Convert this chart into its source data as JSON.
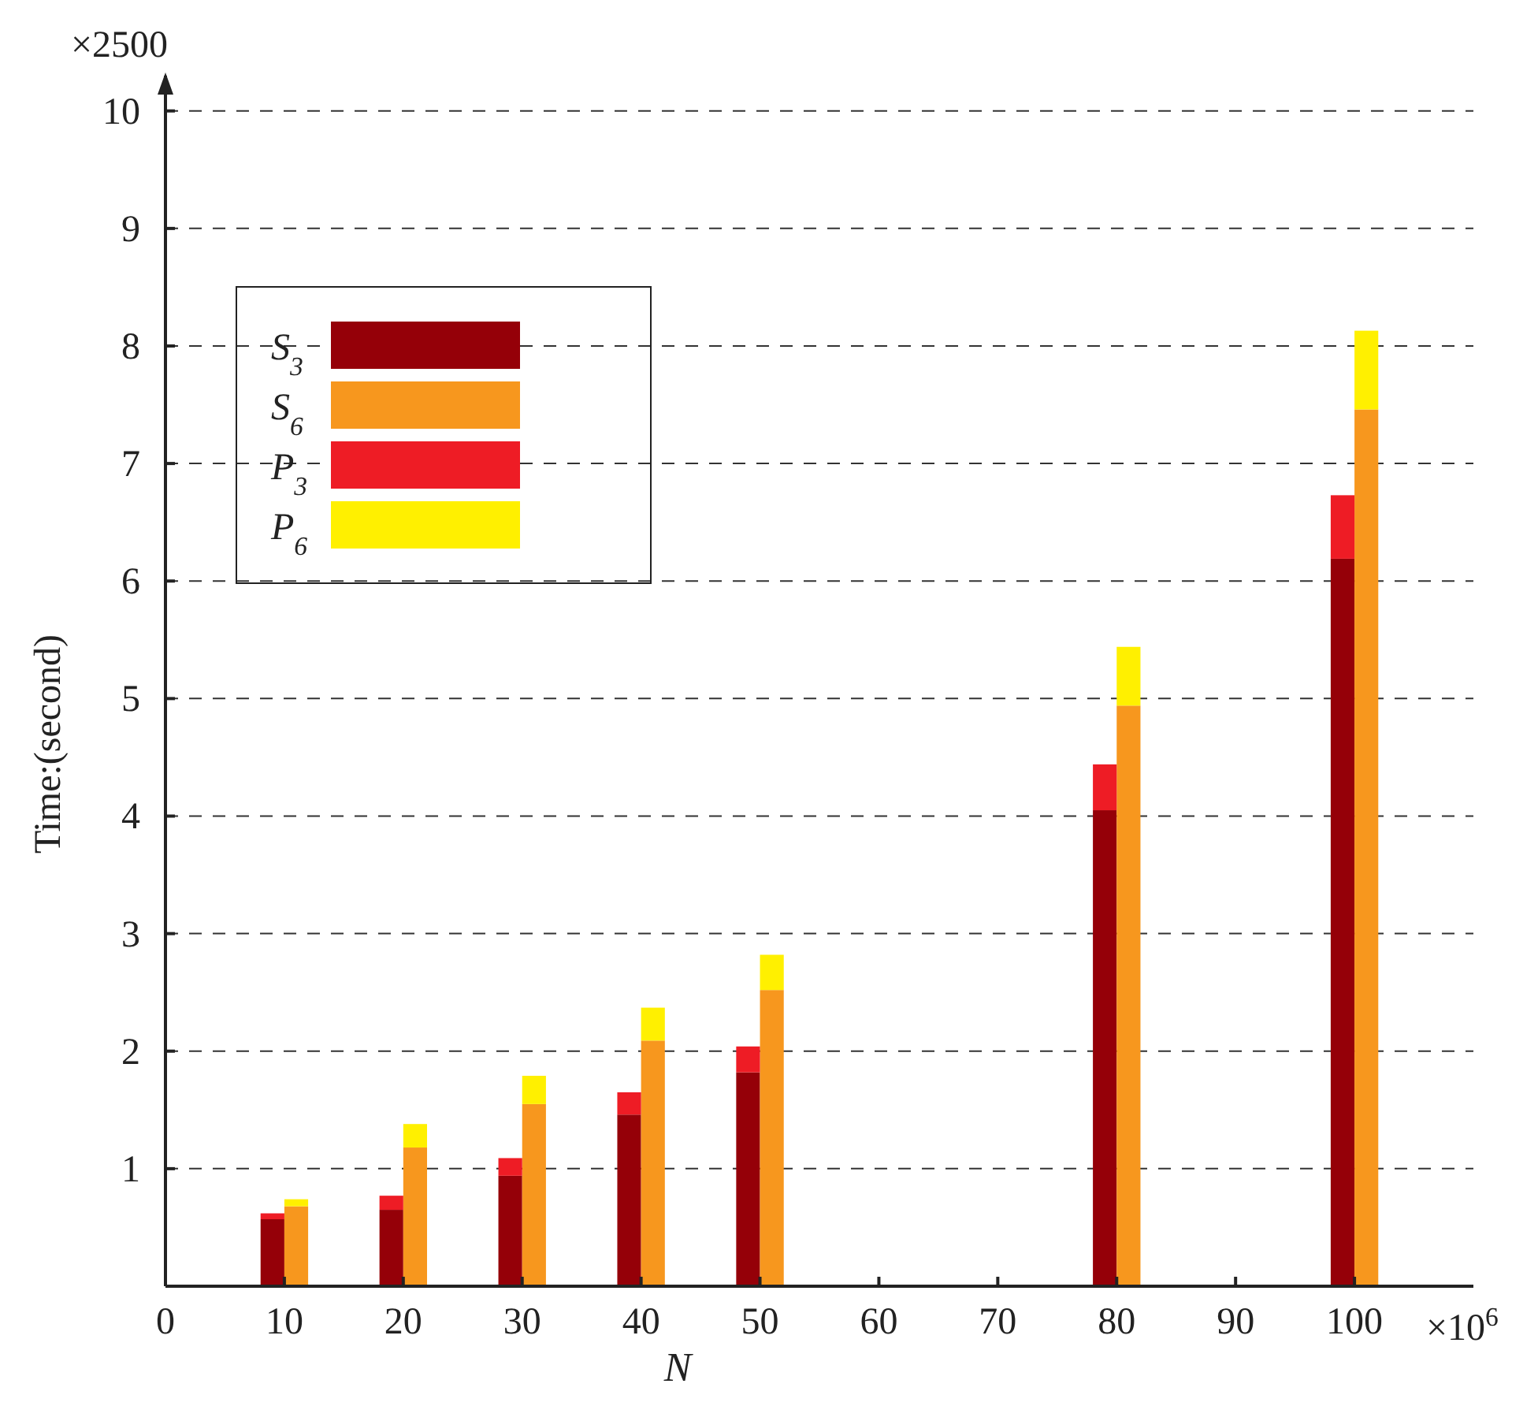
{
  "chart_data": {
    "type": "bar",
    "xlabel": "N",
    "ylabel": "Time:(second)",
    "stacked": true,
    "x": [
      9,
      11,
      19,
      21,
      29,
      31,
      39,
      41,
      49,
      51,
      79,
      81,
      99,
      101
    ],
    "series": [
      {
        "name": "S$_{3}$",
        "color": "#950008",
        "values": [
          0.57,
          null,
          0.65,
          null,
          0.94,
          null,
          1.46,
          null,
          1.82,
          null,
          4.05,
          null,
          6.19,
          null
        ]
      },
      {
        "name": "S$_{6}$",
        "color": "#f7971e",
        "values": [
          null,
          0.68,
          null,
          1.18,
          null,
          1.55,
          null,
          2.09,
          null,
          2.52,
          null,
          4.94,
          null,
          7.46
        ]
      },
      {
        "name": "P$_{3}$",
        "color": "#ee1c25",
        "values": [
          0.05,
          null,
          0.12,
          null,
          0.15,
          null,
          0.19,
          null,
          0.22,
          null,
          0.39,
          null,
          0.54,
          null
        ]
      },
      {
        "name": "P$_{6}$",
        "color": "#fff000",
        "values": [
          null,
          0.06,
          null,
          0.2,
          null,
          0.24,
          null,
          0.28,
          null,
          0.3,
          null,
          0.5,
          null,
          0.67
        ]
      }
    ],
    "xlim": [
      0,
      110
    ],
    "xticks": [
      0,
      10,
      20,
      30,
      40,
      50,
      60,
      70,
      80,
      90,
      100
    ],
    "ylim": [
      0,
      10.3
    ],
    "yticks": [
      1,
      2,
      3,
      4,
      5,
      6,
      7,
      8,
      9,
      10
    ],
    "grid": "y",
    "legend": "top left",
    "annotations": [
      "×2500",
      "×10$^{6}$"
    ]
  }
}
